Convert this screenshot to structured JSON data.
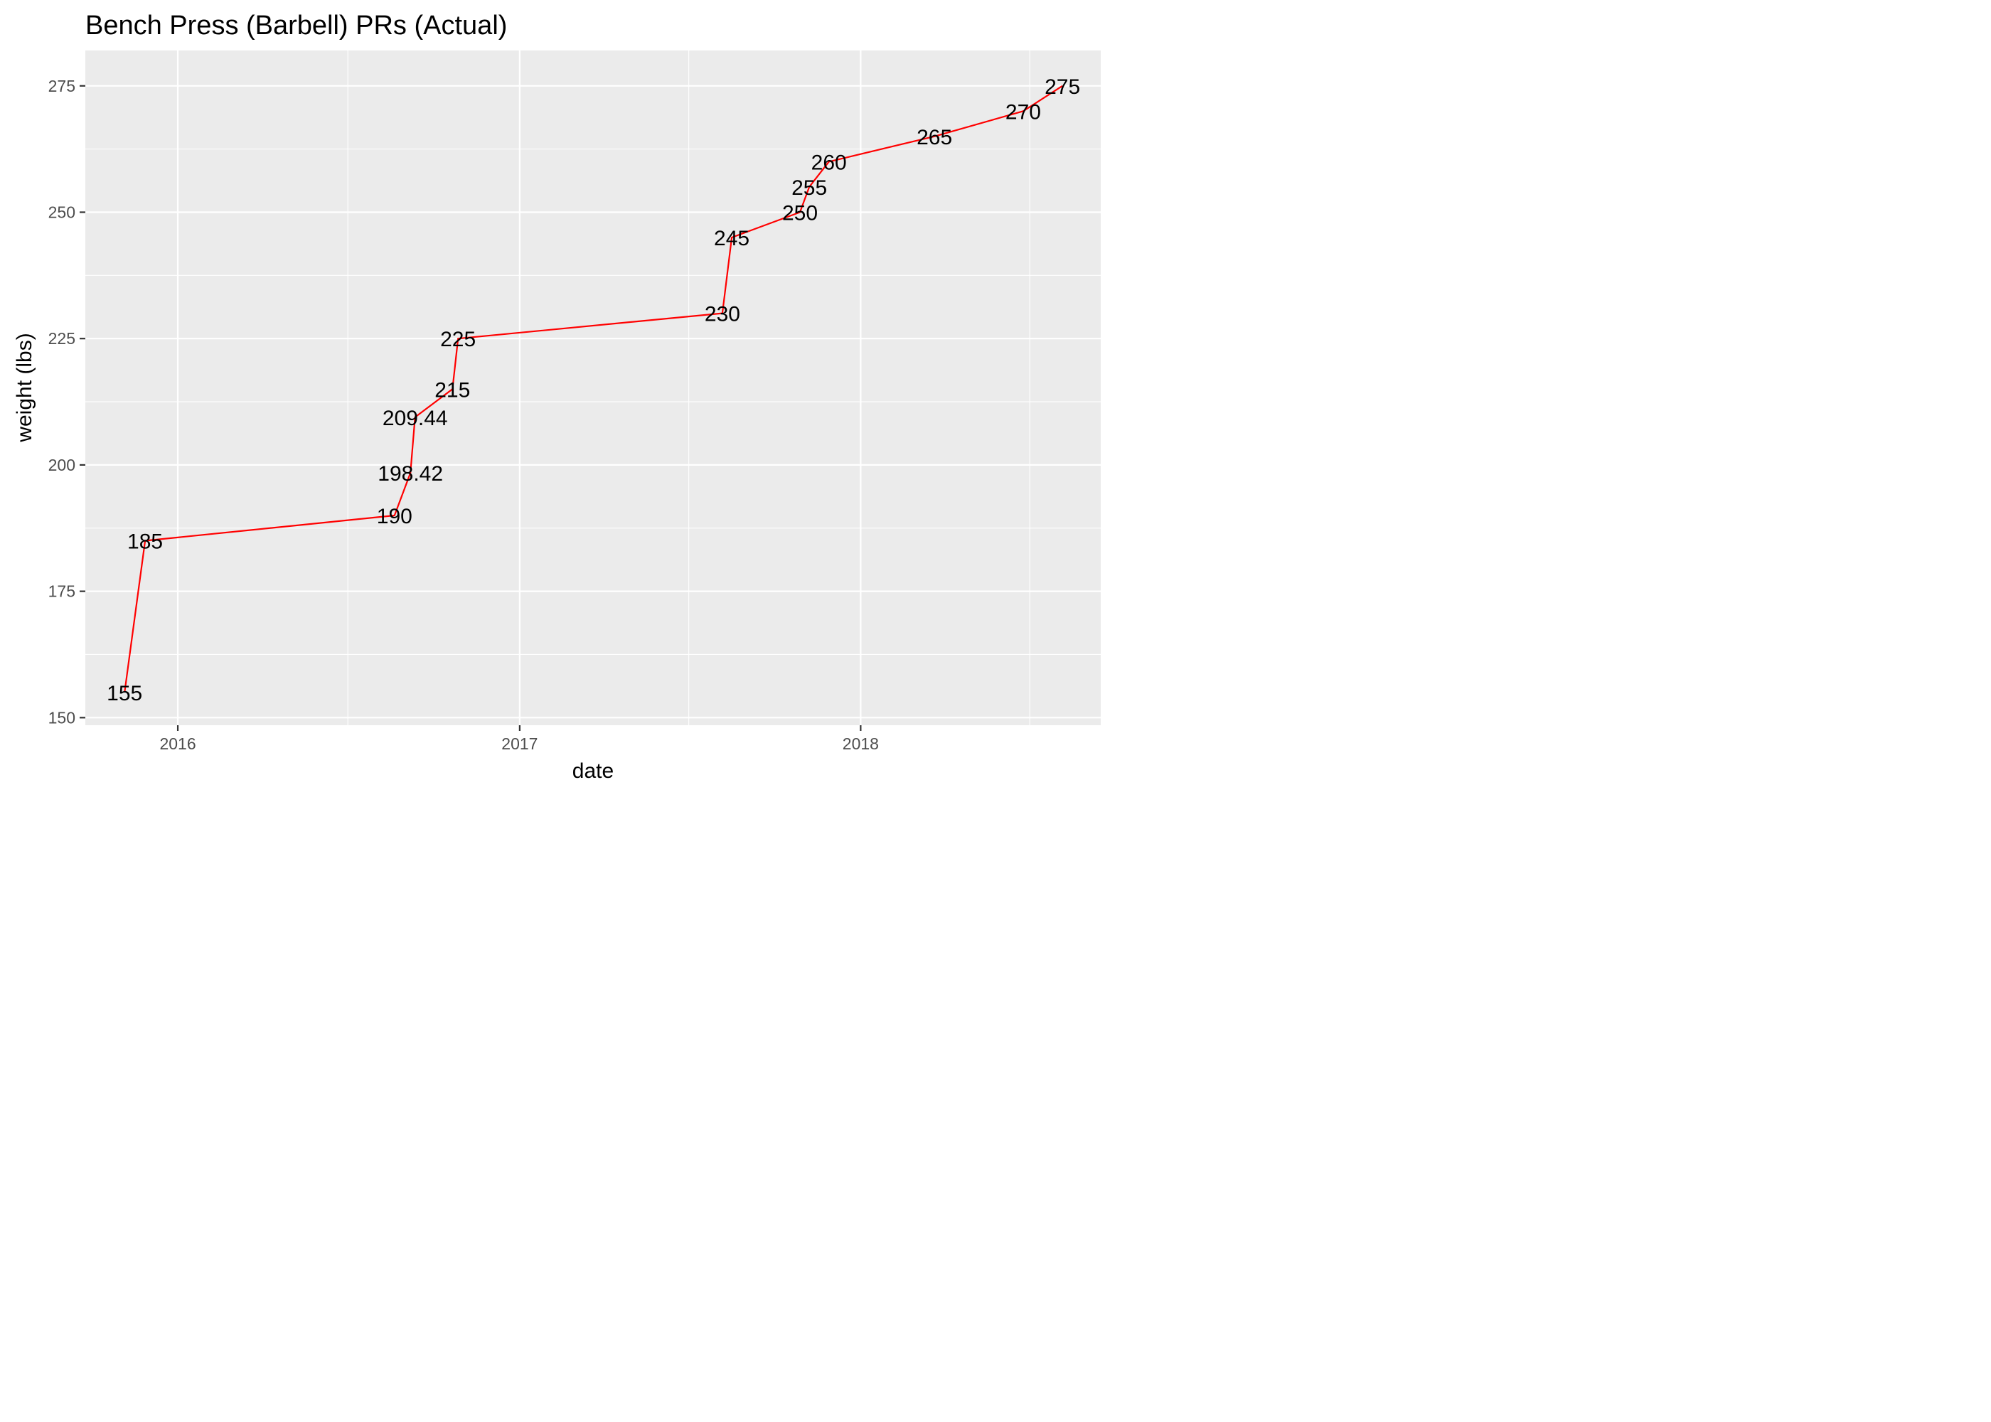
{
  "chart_data": {
    "type": "line",
    "title": "Bench Press (Barbell) PRs (Actual)",
    "xlabel": "date",
    "ylabel": "weight (lbs)",
    "x_axis_type": "date",
    "xlim": [
      "2015-09-24",
      "2018-09-15"
    ],
    "ylim": [
      148.5,
      282
    ],
    "x_ticks": [
      "2016-01-01",
      "2017-01-01",
      "2018-01-01"
    ],
    "x_tick_labels": [
      "2016",
      "2017",
      "2018"
    ],
    "x_minor_ticks": [
      "2016-07-01",
      "2017-07-01",
      "2018-07-01"
    ],
    "y_ticks": [
      150,
      175,
      200,
      225,
      250,
      275
    ],
    "y_tick_labels": [
      "150",
      "175",
      "200",
      "225",
      "250",
      "275"
    ],
    "y_minor_ticks": [
      162.5,
      187.5,
      212.5,
      237.5,
      262.5
    ],
    "grid": true,
    "legend": "none",
    "colors": {
      "line": "#ff0000",
      "panel": "#ebebeb",
      "grid": "#ffffff"
    },
    "series": [
      {
        "points": [
          {
            "x": "2015-11-05",
            "y": 155,
            "label": "155"
          },
          {
            "x": "2015-11-27",
            "y": 185,
            "label": "185"
          },
          {
            "x": "2016-08-20",
            "y": 190,
            "label": "190"
          },
          {
            "x": "2016-09-06",
            "y": 198.42,
            "label": "198.42"
          },
          {
            "x": "2016-09-11",
            "y": 209.44,
            "label": "209.44"
          },
          {
            "x": "2016-10-21",
            "y": 215,
            "label": "215"
          },
          {
            "x": "2016-10-27",
            "y": 225,
            "label": "225"
          },
          {
            "x": "2017-08-06",
            "y": 230,
            "label": "230"
          },
          {
            "x": "2017-08-16",
            "y": 245,
            "label": "245"
          },
          {
            "x": "2017-10-28",
            "y": 250,
            "label": "250"
          },
          {
            "x": "2017-11-07",
            "y": 255,
            "label": "255"
          },
          {
            "x": "2017-11-28",
            "y": 260,
            "label": "260"
          },
          {
            "x": "2018-03-21",
            "y": 265,
            "label": "265"
          },
          {
            "x": "2018-06-24",
            "y": 270,
            "label": "270"
          },
          {
            "x": "2018-08-05",
            "y": 275,
            "label": "275"
          }
        ]
      }
    ]
  }
}
